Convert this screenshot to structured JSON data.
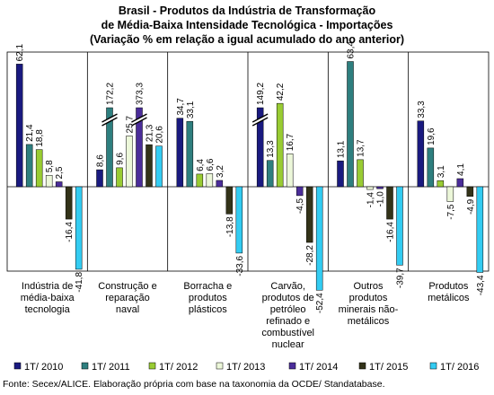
{
  "chart_data": {
    "type": "bar",
    "title": [
      "Brasil - Produtos da Indústria de Transformação",
      "de Média-Baixa Intensidade Tecnológica - Importações",
      "(Variação % em relação a igual acumulado do ano anterior)"
    ],
    "categories": [
      [
        "Indústria de",
        "média-baixa",
        "tecnologia"
      ],
      [
        "Construção e",
        "reparação",
        "naval"
      ],
      [
        "Borracha e",
        "produtos",
        "plásticos"
      ],
      [
        "Carvão,",
        "produtos de",
        "petróleo",
        "refinado e",
        "combustível",
        "nuclear"
      ],
      [
        "Outros",
        "produtos",
        "minerais não-",
        "metálicos"
      ],
      [
        "Produtos",
        "metálicos"
      ]
    ],
    "series": [
      {
        "name": "1T/ 2010",
        "color": "#1a1a80",
        "values": [
          62.1,
          8.6,
          34.7,
          149.2,
          13.1,
          33.3
        ]
      },
      {
        "name": "1T/ 2011",
        "color": "#2e7f7f",
        "values": [
          21.4,
          172.2,
          33.1,
          13.3,
          63.4,
          19.6
        ]
      },
      {
        "name": "1T/ 2012",
        "color": "#99cc33",
        "values": [
          18.8,
          9.6,
          6.4,
          42.2,
          13.7,
          3.1
        ]
      },
      {
        "name": "1T/ 2013",
        "color": "#ecf7d9",
        "values": [
          5.8,
          25.7,
          6.6,
          16.7,
          -1.4,
          -7.5
        ]
      },
      {
        "name": "1T/ 2014",
        "color": "#4b2d9a",
        "values": [
          2.5,
          373.3,
          3.2,
          -4.5,
          -1.0,
          4.1
        ]
      },
      {
        "name": "1T/ 2015",
        "color": "#333319",
        "values": [
          -16.4,
          21.3,
          -13.8,
          -28.2,
          -16.4,
          -4.9
        ]
      },
      {
        "name": "1T/ 2016",
        "color": "#33ccf2",
        "values": [
          -41.8,
          20.6,
          -33.6,
          -52.4,
          -39.7,
          -43.4
        ]
      }
    ],
    "labels": [
      [
        "62,1",
        "21,4",
        "18,8",
        "5,8",
        "2,5",
        "-16,4",
        "-41,8"
      ],
      [
        "8,6",
        "172,2",
        "9,6",
        "25,7",
        "373,3",
        "21,3",
        "20,6"
      ],
      [
        "34,7",
        "33,1",
        "6,4",
        "6,6",
        "3,2",
        "-13,8",
        "-33,6"
      ],
      [
        "149,2",
        "13,3",
        "42,2",
        "16,7",
        "-4,5",
        "-28,2",
        "-52,4"
      ],
      [
        "13,1",
        "63,4",
        "13,7",
        "-1,4",
        "-1,0",
        "-16,4",
        "-39,7"
      ],
      [
        "33,3",
        "19,6",
        "3,1",
        "-7,5",
        "4,1",
        "-4,9",
        "-43,4"
      ]
    ],
    "axis_break": true,
    "grid": false,
    "legend": "bottom"
  },
  "source": "Fonte: Secex/ALICE. Elaboração própria com base na taxonomia da OCDE/ Standatabase."
}
